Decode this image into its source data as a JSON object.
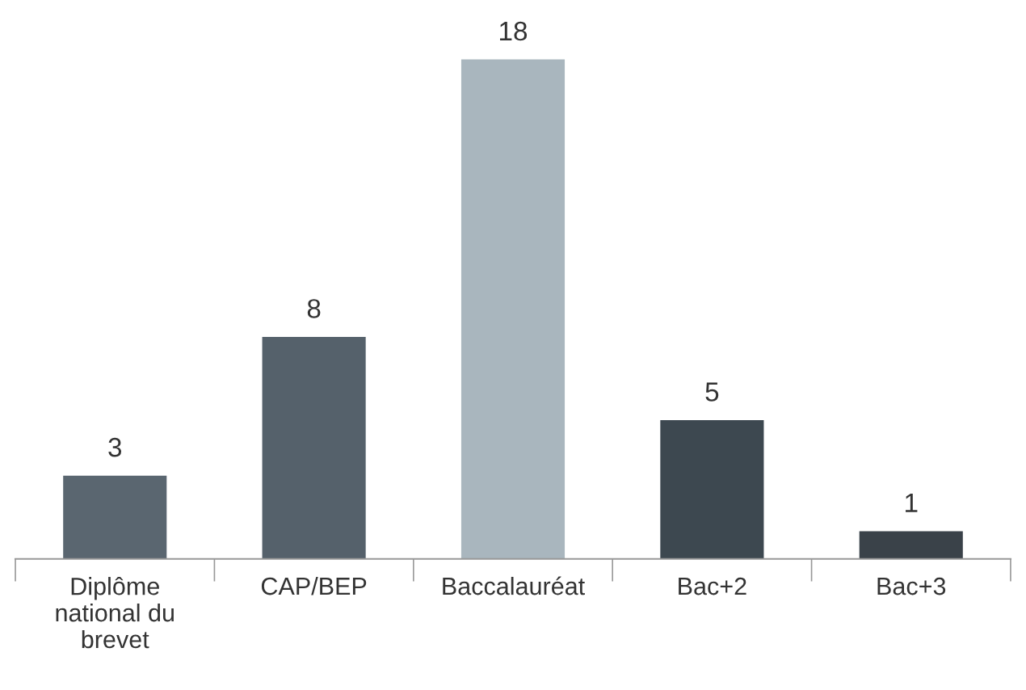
{
  "chart_data": {
    "type": "bar",
    "categories": [
      "Diplôme\nnational du\nbrevet",
      "CAP/BEP",
      "Baccalauréat",
      "Bac+2",
      "Bac+3"
    ],
    "values": [
      3,
      8,
      18,
      5,
      1
    ],
    "colors": [
      "#5a6670",
      "#55616b",
      "#a9b6be",
      "#3d4850",
      "#3a4249"
    ],
    "data_labels": true,
    "grid": false,
    "legend": false,
    "tick_labels": "x"
  }
}
